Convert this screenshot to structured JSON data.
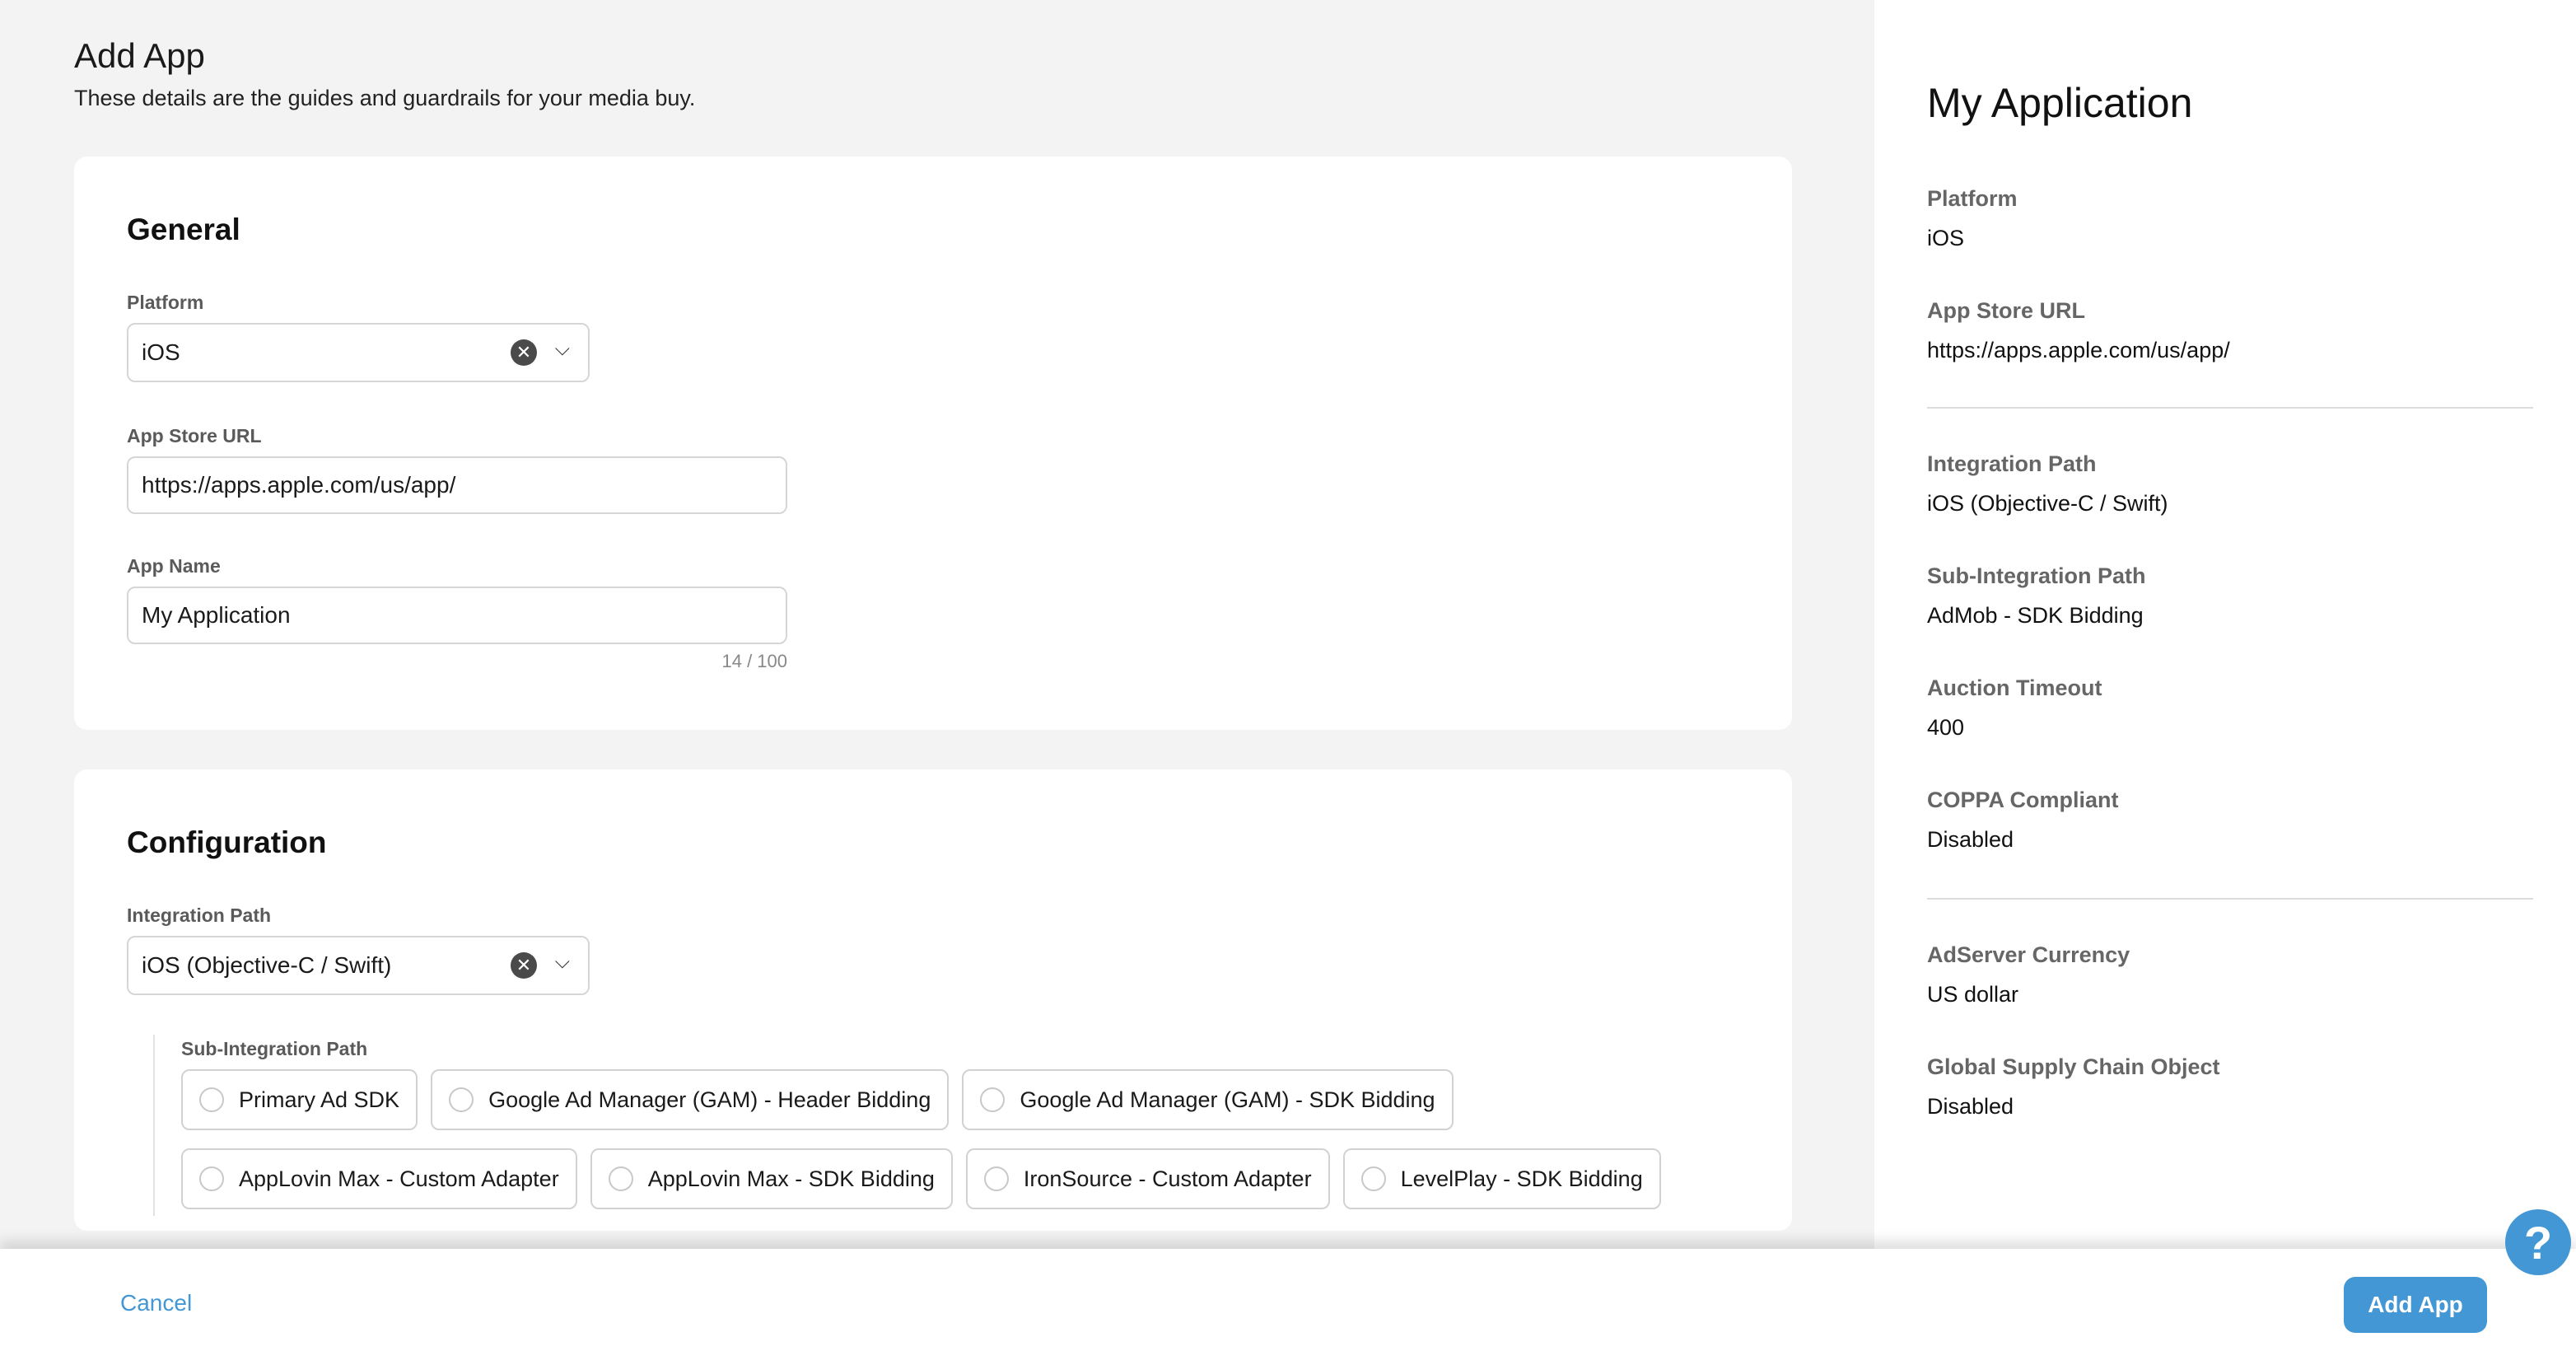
{
  "header": {
    "title": "Add App",
    "subtitle": "These details are the guides and guardrails for your media buy."
  },
  "general": {
    "title": "General",
    "platform_label": "Platform",
    "platform_value": "iOS",
    "url_label": "App Store URL",
    "url_value": "https://apps.apple.com/us/app/",
    "name_label": "App Name",
    "name_value": "My Application",
    "name_counter": "14 / 100"
  },
  "configuration": {
    "title": "Configuration",
    "integration_label": "Integration Path",
    "integration_value": "iOS (Objective-C / Swift)",
    "sub_label": "Sub-Integration Path",
    "options": [
      "Primary Ad SDK",
      "Google Ad Manager (GAM) - Header Bidding",
      "Google Ad Manager (GAM) - SDK Bidding",
      "AppLovin Max - Custom Adapter",
      "AppLovin Max - SDK Bidding",
      "IronSource - Custom Adapter",
      "LevelPlay - SDK Bidding"
    ]
  },
  "summary": {
    "title": "My Application",
    "items": [
      {
        "label": "Platform",
        "value": "iOS"
      },
      {
        "label": "App Store URL",
        "value": "https://apps.apple.com/us/app/"
      },
      {
        "label": "Integration Path",
        "value": "iOS (Objective-C / Swift)"
      },
      {
        "label": "Sub-Integration Path",
        "value": "AdMob - SDK Bidding"
      },
      {
        "label": "Auction Timeout",
        "value": "400"
      },
      {
        "label": "COPPA Compliant",
        "value": "Disabled"
      },
      {
        "label": "AdServer Currency",
        "value": "US dollar"
      },
      {
        "label": "Global Supply Chain Object",
        "value": "Disabled"
      }
    ]
  },
  "footer": {
    "cancel": "Cancel",
    "add": "Add App",
    "help": "?"
  },
  "colors": {
    "accent": "#4397d4"
  }
}
